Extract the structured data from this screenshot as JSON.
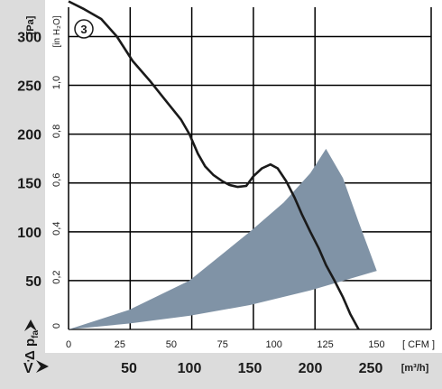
{
  "chart_data": {
    "type": "line",
    "curve_label": "3",
    "axes": {
      "pa_unit": "[Pa]",
      "pa_ticks": [
        "0",
        "50",
        "100",
        "150",
        "200",
        "250",
        "300"
      ],
      "inh2o_unit": "[in H₂O]",
      "inh2o_ticks": [
        "0",
        "0,2",
        "0,4",
        "0,6",
        "0,8",
        "1,0"
      ],
      "pressure_symbol": "Δ p",
      "pressure_subscript": "fa",
      "cfm_unit": "[ CFM ]",
      "cfm_ticks": [
        "0",
        "25",
        "50",
        "75",
        "100",
        "125",
        "150"
      ],
      "m3h_unit": "[m³/h]",
      "m3h_ticks": [
        "50",
        "100",
        "150",
        "200",
        "250"
      ],
      "flow_symbol": "V̇",
      "ylim_pa": [
        0,
        330
      ],
      "xlim_m3h": [
        0,
        300
      ]
    },
    "grid": true,
    "series": [
      {
        "x_m3h": [
          0,
          13,
          27,
          40,
          53,
          67,
          80,
          93,
          100,
          107,
          113,
          120,
          127,
          133,
          140,
          147,
          153,
          160,
          167,
          173,
          180,
          187,
          193,
          200,
          207,
          213,
          220,
          227,
          233,
          240,
          247,
          253
        ],
        "y_pa": [
          336,
          328,
          318,
          300,
          275,
          255,
          235,
          215,
          200,
          180,
          167,
          158,
          152,
          148,
          146,
          147,
          157,
          165,
          169,
          165,
          152,
          135,
          118,
          100,
          83,
          66,
          50,
          33,
          16,
          0,
          0,
          0
        ],
        "color": "#1a1a1a"
      }
    ],
    "operating_range": {
      "color": "#8093a6",
      "upper_x_m3h": [
        0,
        50,
        100,
        150,
        178,
        200,
        213,
        227,
        240,
        255
      ],
      "upper_y_pa": [
        0,
        20,
        50,
        100,
        130,
        160,
        185,
        155,
        110,
        60
      ],
      "lower_x_m3h": [
        255,
        200,
        150,
        100,
        50,
        0
      ],
      "lower_y_pa": [
        60,
        40,
        25,
        14,
        6,
        0
      ]
    }
  }
}
